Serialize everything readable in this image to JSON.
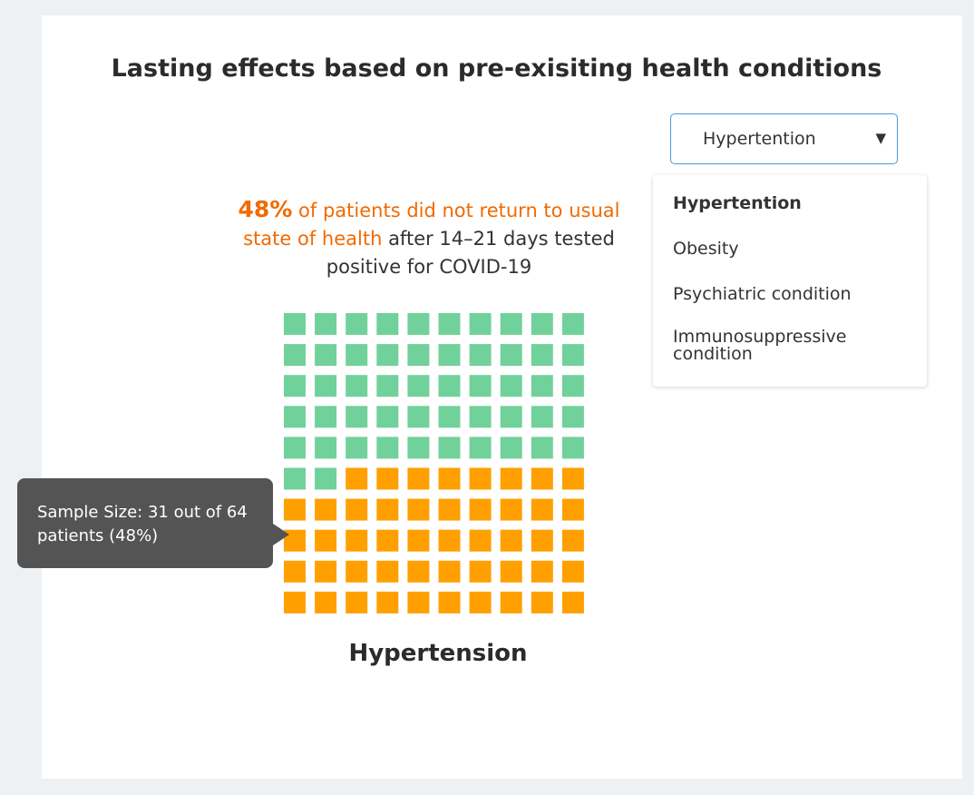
{
  "title": "Lasting effects based on pre-exisiting health conditions",
  "dropdown": {
    "selected": "Hypertention",
    "caret": "▼",
    "options": [
      {
        "label": "Hypertention",
        "selected": true
      },
      {
        "label": "Obesity",
        "selected": false
      },
      {
        "label": "Psychiatric condition",
        "selected": false
      },
      {
        "label": "Immunosuppressive condition",
        "selected": false
      }
    ]
  },
  "headline": {
    "percent": "48%",
    "orange_text": " of patients did not return to usual state of health",
    "rest_text": " after 14–21 days tested positive for COVID-19"
  },
  "tooltip": "Sample Size: 31 out of 64 patients (48%)",
  "caption": "Hypertension",
  "colors": {
    "returned": "#71d19a",
    "not_returned": "#ffa000",
    "highlight": "#f26a00"
  },
  "chart_data": {
    "type": "waffle",
    "total_cells": 100,
    "rows": 10,
    "columns": 10,
    "highlighted_cells": 48,
    "highlighted_percent": 48,
    "sample_size": 64,
    "sample_count": 31,
    "title": "Hypertension"
  }
}
